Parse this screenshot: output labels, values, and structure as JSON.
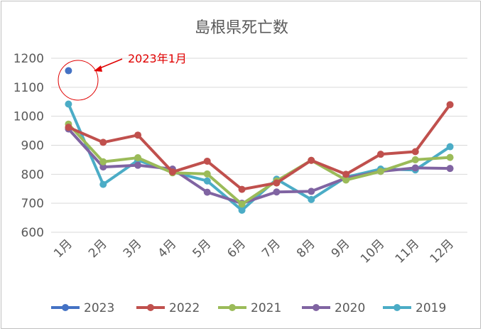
{
  "chart_data": {
    "type": "line",
    "title": "島根県死亡数",
    "xlabel": "",
    "ylabel": "",
    "categories": [
      "1月",
      "2月",
      "3月",
      "4月",
      "5月",
      "6月",
      "7月",
      "8月",
      "9月",
      "10月",
      "11月",
      "12月"
    ],
    "ylim": [
      600,
      1200
    ],
    "yticks": [
      "600",
      "700",
      "800",
      "900",
      "1000",
      "1100",
      "1200"
    ],
    "grid": true,
    "legend_position": "bottom",
    "series": [
      {
        "name": "2023",
        "color": "#4472c4",
        "values": [
          1157,
          null,
          null,
          null,
          null,
          null,
          null,
          null,
          null,
          null,
          null,
          null
        ]
      },
      {
        "name": "2022",
        "color": "#c0504d",
        "values": [
          962,
          910,
          935,
          808,
          845,
          748,
          770,
          848,
          800,
          869,
          878,
          1040
        ]
      },
      {
        "name": "2021",
        "color": "#9bbb59",
        "values": [
          973,
          843,
          857,
          805,
          801,
          697,
          777,
          848,
          780,
          810,
          850,
          858
        ]
      },
      {
        "name": "2020",
        "color": "#8064a2",
        "values": [
          956,
          825,
          831,
          818,
          738,
          700,
          739,
          741,
          787,
          810,
          822,
          820
        ]
      },
      {
        "name": "2019",
        "color": "#4bacc6",
        "values": [
          1042,
          765,
          848,
          808,
          777,
          676,
          783,
          713,
          790,
          818,
          815,
          895
        ]
      }
    ],
    "annotation": {
      "text": "2023年1月",
      "color": "#e00000"
    }
  }
}
